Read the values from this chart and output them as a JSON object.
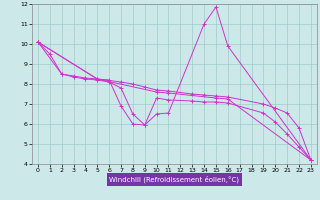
{
  "xlabel": "Windchill (Refroidissement éolien,°C)",
  "xlim": [
    -0.5,
    23.5
  ],
  "ylim": [
    4,
    12
  ],
  "xticks": [
    0,
    1,
    2,
    3,
    4,
    5,
    6,
    7,
    8,
    9,
    10,
    11,
    12,
    13,
    14,
    15,
    16,
    17,
    18,
    19,
    20,
    21,
    22,
    23
  ],
  "yticks": [
    4,
    5,
    6,
    7,
    8,
    9,
    10,
    11,
    12
  ],
  "background_color": "#cde8e8",
  "grid_color": "#a0cccc",
  "line_color": "#cc33cc",
  "lines": [
    {
      "x": [
        0,
        1,
        2,
        3,
        4,
        5,
        6,
        7,
        8,
        9,
        10,
        11,
        14,
        15,
        16,
        23
      ],
      "y": [
        10.1,
        9.5,
        8.5,
        8.4,
        8.3,
        8.25,
        8.2,
        6.9,
        6.0,
        5.95,
        6.5,
        6.55,
        11.0,
        11.85,
        9.9,
        4.2
      ]
    },
    {
      "x": [
        0,
        5,
        10,
        11,
        15,
        16,
        23
      ],
      "y": [
        10.1,
        8.25,
        7.6,
        7.55,
        7.3,
        7.25,
        4.2
      ]
    },
    {
      "x": [
        0,
        5,
        7,
        8,
        9,
        10,
        11,
        13,
        14,
        15,
        16,
        19,
        20,
        21,
        22,
        23
      ],
      "y": [
        10.1,
        8.25,
        8.1,
        8.0,
        7.85,
        7.7,
        7.65,
        7.5,
        7.45,
        7.4,
        7.35,
        7.0,
        6.8,
        6.55,
        5.8,
        4.2
      ]
    },
    {
      "x": [
        0,
        2,
        3,
        4,
        5,
        6,
        7,
        8,
        9,
        10,
        11,
        13,
        14,
        15,
        16,
        19,
        20,
        21,
        22,
        23
      ],
      "y": [
        10.1,
        8.5,
        8.35,
        8.25,
        8.2,
        8.1,
        7.8,
        6.5,
        5.95,
        7.3,
        7.2,
        7.15,
        7.1,
        7.1,
        7.05,
        6.55,
        6.1,
        5.5,
        4.85,
        4.2
      ]
    }
  ]
}
